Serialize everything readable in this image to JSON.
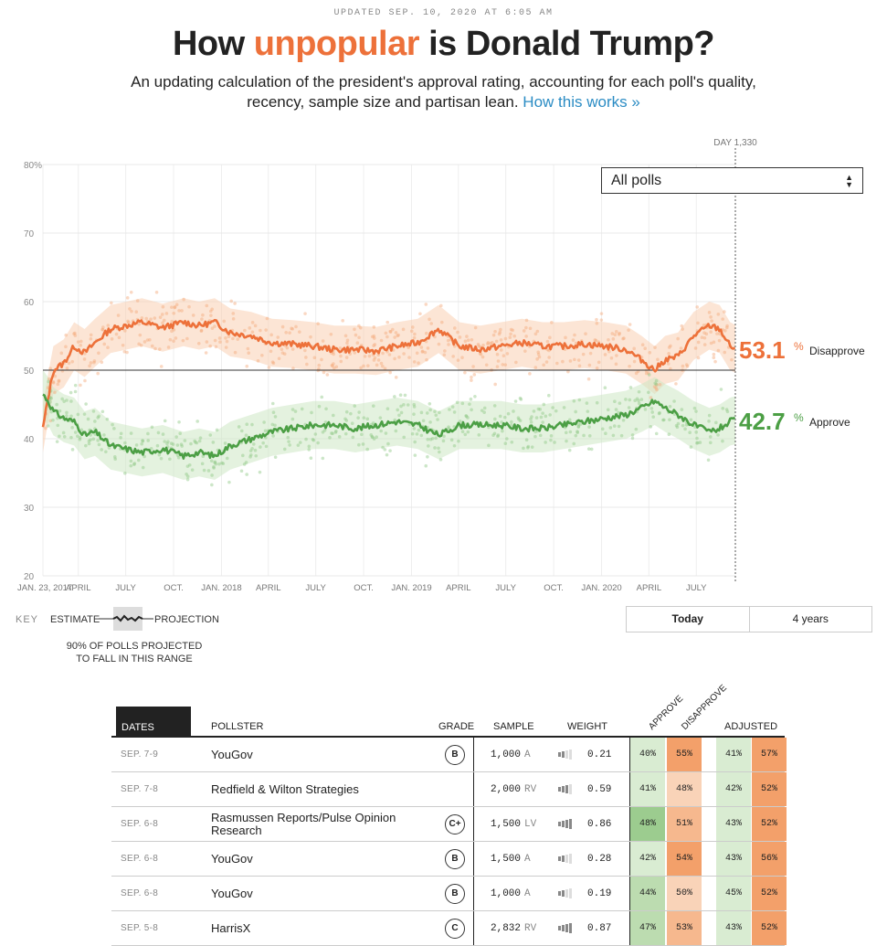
{
  "header": {
    "updated": "UPDATED SEP. 10, 2020 AT 6:05 AM",
    "title_pre": "How ",
    "title_hl": "unpopular",
    "title_post": " is Donald Trump?",
    "subtitle": "An updating calculation of the president's approval rating, accounting for each poll's quality, recency, sample size and partisan lean. ",
    "subtitle_link": "How this works »"
  },
  "controls": {
    "poll_select": "All polls",
    "toggle_today": "Today",
    "toggle_4years": "4 years"
  },
  "key": {
    "label": "KEY",
    "estimate": "ESTIMATE",
    "projection": "PROJECTION",
    "note_line1": "90% OF POLLS PROJECTED",
    "note_line2": "TO FALL IN THIS RANGE"
  },
  "colors": {
    "disapprove": "#ed713a",
    "approve": "#4c9f45",
    "disapprove_light": "#f9cfb3",
    "approve_light": "#cde7c4"
  },
  "chart_data": {
    "type": "line",
    "title": "How unpopular is Donald Trump?",
    "xlabel": "",
    "ylabel": "",
    "ylim": [
      20,
      80
    ],
    "xlim": [
      0,
      1330
    ],
    "yticks": [
      20,
      30,
      40,
      50,
      60,
      70,
      80
    ],
    "ytick_labels": [
      "20",
      "30",
      "40",
      "50",
      "60",
      "70",
      "80%"
    ],
    "x_ticks": [
      {
        "day": 0,
        "label": "JAN. 23, 2017"
      },
      {
        "day": 68,
        "label": "APRIL"
      },
      {
        "day": 159,
        "label": "JULY"
      },
      {
        "day": 251,
        "label": "OCT."
      },
      {
        "day": 343,
        "label": "JAN. 2018"
      },
      {
        "day": 433,
        "label": "APRIL"
      },
      {
        "day": 524,
        "label": "JULY"
      },
      {
        "day": 616,
        "label": "OCT."
      },
      {
        "day": 708,
        "label": "JAN. 2019"
      },
      {
        "day": 798,
        "label": "APRIL"
      },
      {
        "day": 889,
        "label": "JULY"
      },
      {
        "day": 981,
        "label": "OCT."
      },
      {
        "day": 1073,
        "label": "JAN. 2020"
      },
      {
        "day": 1164,
        "label": "APRIL"
      },
      {
        "day": 1255,
        "label": "JULY"
      }
    ],
    "reference_line": 50,
    "current_day_label": "DAY 1,330",
    "series": [
      {
        "name": "Disapprove",
        "current_value": "53.1",
        "label": "Disapprove",
        "band": 7,
        "points": [
          [
            0,
            41.5
          ],
          [
            10,
            46
          ],
          [
            20,
            50
          ],
          [
            40,
            51
          ],
          [
            60,
            53.5
          ],
          [
            80,
            52.5
          ],
          [
            100,
            54
          ],
          [
            130,
            56
          ],
          [
            160,
            56.5
          ],
          [
            190,
            57
          ],
          [
            230,
            56.2
          ],
          [
            270,
            57
          ],
          [
            300,
            56.5
          ],
          [
            330,
            57
          ],
          [
            360,
            55.5
          ],
          [
            400,
            55
          ],
          [
            440,
            54
          ],
          [
            480,
            53.8
          ],
          [
            520,
            53.5
          ],
          [
            560,
            53
          ],
          [
            600,
            53
          ],
          [
            640,
            52.8
          ],
          [
            680,
            53.5
          ],
          [
            720,
            54
          ],
          [
            760,
            56
          ],
          [
            800,
            53.5
          ],
          [
            840,
            53
          ],
          [
            880,
            53.5
          ],
          [
            920,
            54
          ],
          [
            960,
            53.5
          ],
          [
            1000,
            53.5
          ],
          [
            1040,
            53.8
          ],
          [
            1080,
            53.5
          ],
          [
            1120,
            53
          ],
          [
            1150,
            51.5
          ],
          [
            1175,
            50
          ],
          [
            1195,
            51.5
          ],
          [
            1220,
            52
          ],
          [
            1250,
            55
          ],
          [
            1280,
            56.5
          ],
          [
            1300,
            56
          ],
          [
            1320,
            53.5
          ],
          [
            1330,
            53.1
          ]
        ]
      },
      {
        "name": "Approve",
        "current_value": "42.7",
        "label": "Approve",
        "band": 7,
        "points": [
          [
            0,
            46.5
          ],
          [
            10,
            45.5
          ],
          [
            20,
            44
          ],
          [
            40,
            43
          ],
          [
            60,
            42.5
          ],
          [
            80,
            40.5
          ],
          [
            100,
            41
          ],
          [
            130,
            39
          ],
          [
            160,
            38.5
          ],
          [
            190,
            38
          ],
          [
            230,
            38.5
          ],
          [
            270,
            37.5
          ],
          [
            300,
            38
          ],
          [
            330,
            37.5
          ],
          [
            360,
            39
          ],
          [
            400,
            40
          ],
          [
            440,
            41
          ],
          [
            480,
            41.5
          ],
          [
            520,
            42
          ],
          [
            560,
            42
          ],
          [
            600,
            41.5
          ],
          [
            640,
            42
          ],
          [
            680,
            42.5
          ],
          [
            720,
            42
          ],
          [
            760,
            40.5
          ],
          [
            800,
            42
          ],
          [
            840,
            42
          ],
          [
            880,
            42
          ],
          [
            920,
            41.5
          ],
          [
            960,
            41.5
          ],
          [
            1000,
            42
          ],
          [
            1040,
            42.5
          ],
          [
            1080,
            43
          ],
          [
            1120,
            43.5
          ],
          [
            1150,
            44.5
          ],
          [
            1175,
            45.5
          ],
          [
            1195,
            44.5
          ],
          [
            1220,
            43.5
          ],
          [
            1250,
            42
          ],
          [
            1280,
            41
          ],
          [
            1300,
            41.5
          ],
          [
            1320,
            42.5
          ],
          [
            1330,
            42.7
          ]
        ]
      }
    ]
  },
  "table": {
    "headers": {
      "dates": "DATES",
      "pollster": "POLLSTER",
      "grade": "GRADE",
      "sample": "SAMPLE",
      "weight": "WEIGHT",
      "approve": "APPROVE",
      "disapprove": "DISAPPROVE",
      "adjusted": "ADJUSTED"
    },
    "rows": [
      {
        "date": "SEP. 7-9",
        "pollster": "YouGov",
        "grade": "B",
        "sample": "1,000",
        "pop": "A",
        "weight": "0.21",
        "bars": 2,
        "approve": "40%",
        "disapprove": "55%",
        "adj_approve": "41%",
        "adj_disapprove": "57%",
        "a_shade": 1,
        "d_shade": 3
      },
      {
        "date": "SEP. 7-8",
        "pollster": "Redfield & Wilton Strategies",
        "grade": "",
        "sample": "2,000",
        "pop": "RV",
        "weight": "0.59",
        "bars": 3,
        "approve": "41%",
        "disapprove": "48%",
        "adj_approve": "42%",
        "adj_disapprove": "52%",
        "a_shade": 1,
        "d_shade": 1
      },
      {
        "date": "SEP. 6-8",
        "pollster": "Rasmussen Reports/Pulse Opinion Research",
        "grade": "C+",
        "sample": "1,500",
        "pop": "LV",
        "weight": "0.86",
        "bars": 4,
        "approve": "48%",
        "disapprove": "51%",
        "adj_approve": "43%",
        "adj_disapprove": "52%",
        "a_shade": 3,
        "d_shade": 2
      },
      {
        "date": "SEP. 6-8",
        "pollster": "YouGov",
        "grade": "B",
        "sample": "1,500",
        "pop": "A",
        "weight": "0.28",
        "bars": 2,
        "approve": "42%",
        "disapprove": "54%",
        "adj_approve": "43%",
        "adj_disapprove": "56%",
        "a_shade": 1,
        "d_shade": 3
      },
      {
        "date": "SEP. 6-8",
        "pollster": "YouGov",
        "grade": "B",
        "sample": "1,000",
        "pop": "A",
        "weight": "0.19",
        "bars": 2,
        "approve": "44%",
        "disapprove": "50%",
        "adj_approve": "45%",
        "adj_disapprove": "52%",
        "a_shade": 2,
        "d_shade": 1
      },
      {
        "date": "SEP. 5-8",
        "pollster": "HarrisX",
        "grade": "C",
        "sample": "2,832",
        "pop": "RV",
        "weight": "0.87",
        "bars": 4,
        "approve": "47%",
        "disapprove": "53%",
        "adj_approve": "43%",
        "adj_disapprove": "52%",
        "a_shade": 2,
        "d_shade": 2
      }
    ]
  }
}
